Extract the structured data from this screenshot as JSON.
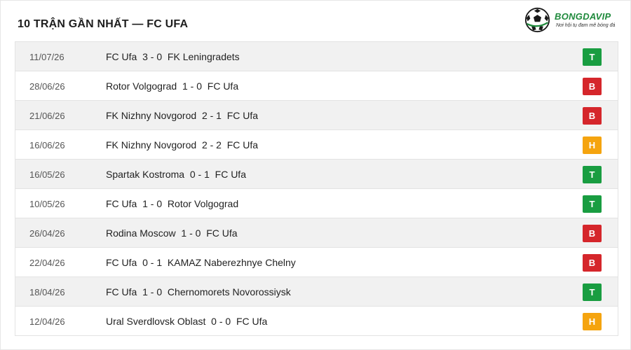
{
  "title": "10 TRẬN GẦN NHẤT — FC UFA",
  "logo": {
    "word_left": "BONGDA",
    "word_right": "VIP",
    "tagline": "Nơi hội tụ đam mê bóng đá"
  },
  "colors": {
    "win": "#199d41",
    "loss": "#d5262b",
    "draw": "#f5a40f",
    "row_alt": "#f1f1f1"
  },
  "matches": [
    {
      "date": "11/07/26",
      "home": "FC Ufa",
      "score": "3 - 0",
      "away": "FK Leningradets",
      "result": "T"
    },
    {
      "date": "28/06/26",
      "home": "Rotor Volgograd",
      "score": "1 - 0",
      "away": "FC Ufa",
      "result": "B"
    },
    {
      "date": "21/06/26",
      "home": "FK Nizhny Novgorod",
      "score": "2 - 1",
      "away": "FC Ufa",
      "result": "B"
    },
    {
      "date": "16/06/26",
      "home": "FK Nizhny Novgorod",
      "score": "2 - 2",
      "away": "FC Ufa",
      "result": "H"
    },
    {
      "date": "16/05/26",
      "home": "Spartak Kostroma",
      "score": "0 - 1",
      "away": "FC Ufa",
      "result": "T"
    },
    {
      "date": "10/05/26",
      "home": "FC Ufa",
      "score": "1 - 0",
      "away": "Rotor Volgograd",
      "result": "T"
    },
    {
      "date": "26/04/26",
      "home": "Rodina Moscow",
      "score": "1 - 0",
      "away": "FC Ufa",
      "result": "B"
    },
    {
      "date": "22/04/26",
      "home": "FC Ufa",
      "score": "0 - 1",
      "away": "KAMAZ Naberezhnye Chelny",
      "result": "B"
    },
    {
      "date": "18/04/26",
      "home": "FC Ufa",
      "score": "1 - 0",
      "away": "Chernomorets Novorossiysk",
      "result": "T"
    },
    {
      "date": "12/04/26",
      "home": "Ural Sverdlovsk Oblast",
      "score": "0 - 0",
      "away": "FC Ufa",
      "result": "H"
    }
  ]
}
